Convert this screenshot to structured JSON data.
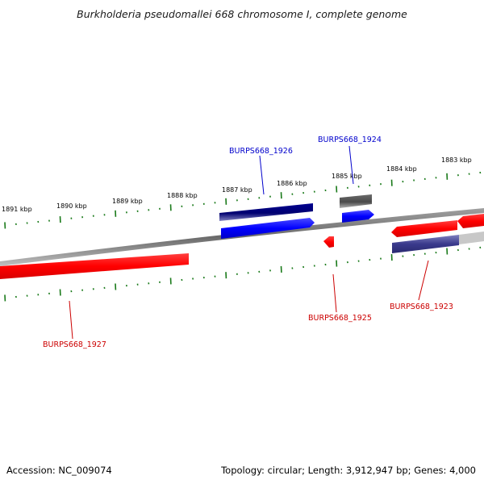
{
  "title": "Burkholderia pseudomallei 668 chromosome I, complete genome",
  "footer": {
    "accession": "Accession: NC_009074",
    "summary": "Topology: circular; Length: 3,912,947 bp; Genes: 4,000"
  },
  "ticks": [
    "1891 kbp",
    "1890 kbp",
    "1889 kbp",
    "1888 kbp",
    "1887 kbp",
    "1886 kbp",
    "1885 kbp",
    "1884 kbp",
    "1883 kbp"
  ],
  "genes": [
    {
      "id": "BURPS668_1926",
      "color": "#0000cc"
    },
    {
      "id": "BURPS668_1924",
      "color": "#0000cc"
    },
    {
      "id": "BURPS668_1927",
      "color": "#cc0000"
    },
    {
      "id": "BURPS668_1925",
      "color": "#cc0000"
    },
    {
      "id": "BURPS668_1923",
      "color": "#cc0000"
    }
  ],
  "colors": {
    "forward_cds": "#0000ff",
    "forward_gene": "#000080",
    "reverse_cds": "#ff0000",
    "reverse_gene": "#3a3a8c",
    "backbone": "#7a7a7a",
    "tick": "#1a7a1a",
    "pseudo": "#5a5a5a"
  }
}
